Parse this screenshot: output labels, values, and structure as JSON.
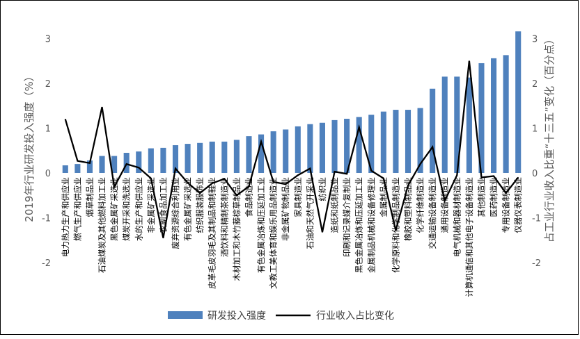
{
  "chart_data": {
    "type": "bar",
    "categories": [
      "电力热力生产和供应业",
      "燃气生产和供应业",
      "烟草制品业",
      "石油煤炭及其他燃料加工业",
      "黑色金属矿采选业",
      "煤炭开采和洗选业",
      "水的生产和供应业",
      "非金属矿采选业",
      "农副食品加工业",
      "废弃资源综合利用业",
      "有色金属矿采选业",
      "纺织服装服饰业",
      "皮革毛皮羽毛及其制品和制鞋业",
      "酒饮料和精制茶制造业",
      "木材加工和木竹藤棕草制品业",
      "食品制造业",
      "有色金属冶炼和压延加工业",
      "文教工美体育和娱乐用品制造业",
      "非金属矿物制品业",
      "家具制造业",
      "石油和天然气开采业",
      "纺织业",
      "造纸和纸制品业",
      "印刷和记录媒介复制业",
      "黑色金属冶炼和压延加工业",
      "金属制品机械和设备修理业",
      "金属制品业",
      "化学原料和化学制品制造业",
      "橡胶和塑料制品业",
      "化学纤维制造业",
      "交通运输设备制造业",
      "通用设备制造业",
      "电气机械和器材制造业",
      "计算机通信和其他电子设备制造业",
      "其他制造业",
      "医药制造业",
      "专用设备制造业",
      "仪器仪表制造业"
    ],
    "series": [
      {
        "name": "研发投入强度",
        "type": "bar",
        "axis": "left",
        "color": "#4f81bd",
        "values": [
          0.17,
          0.2,
          0.28,
          0.38,
          0.38,
          0.45,
          0.48,
          0.55,
          0.56,
          0.62,
          0.65,
          0.67,
          0.7,
          0.7,
          0.74,
          0.82,
          0.86,
          0.93,
          0.97,
          1.04,
          1.09,
          1.12,
          1.18,
          1.21,
          1.25,
          1.3,
          1.37,
          1.41,
          1.41,
          1.45,
          1.88,
          2.15,
          2.15,
          2.13,
          2.45,
          2.56,
          2.63,
          3.16
        ]
      },
      {
        "name": "行业收入占比变化",
        "type": "line",
        "axis": "right",
        "color": "#000000",
        "values": [
          1.2,
          0.27,
          0.22,
          1.47,
          -0.31,
          0.2,
          0.12,
          -0.12,
          -1.45,
          0.1,
          -0.22,
          -0.45,
          -0.23,
          -0.13,
          -0.5,
          -0.3,
          0.7,
          -0.2,
          -0.25,
          -0.05,
          0.1,
          -1.32,
          0.03,
          -0.02,
          1.02,
          0.05,
          -0.12,
          -1.28,
          -0.28,
          0.2,
          0.58,
          -0.62,
          -0.05,
          2.5,
          -0.1,
          -0.07,
          -0.45,
          -0.1
        ]
      }
    ],
    "ylabel": "2019年行业研发投入强度（%）",
    "y2label": "占工业行业收入比重“十三五”变化（百分点）",
    "ylim": [
      -2,
      3.5
    ],
    "y2lim": [
      -2,
      3.5
    ],
    "yticks": [
      "3",
      "2",
      "1",
      "0",
      "-1",
      "-2"
    ],
    "y2ticks": [
      "3",
      "2",
      "1",
      "0",
      "-1",
      "-2"
    ],
    "grid": false,
    "legend_position": "bottom"
  }
}
